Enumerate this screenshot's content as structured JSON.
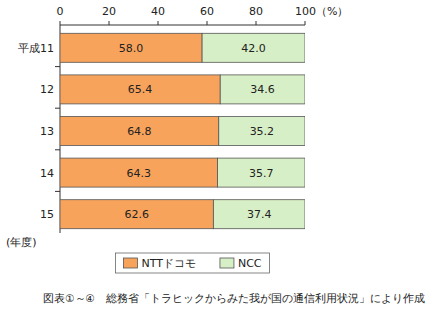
{
  "chart_data": {
    "type": "bar",
    "orientation": "horizontal",
    "stacked": true,
    "data_labels": true,
    "categories": [
      "平成11",
      "12",
      "13",
      "14",
      "15"
    ],
    "y_label": "(年度)",
    "series": [
      {
        "name": "NTTドコモ",
        "color": "#f7a35c",
        "values": [
          58.0,
          65.4,
          64.8,
          64.3,
          62.6
        ],
        "value_labels": [
          "58.0",
          "65.4",
          "64.8",
          "64.3",
          "62.6"
        ]
      },
      {
        "name": "NCC",
        "color": "#d7efc6",
        "values": [
          42.0,
          34.6,
          35.2,
          35.7,
          37.4
        ],
        "value_labels": [
          "42.0",
          "34.6",
          "35.2",
          "35.7",
          "37.4"
        ]
      }
    ],
    "xlim": [
      0,
      100
    ],
    "xticks": [
      0,
      20,
      40,
      60,
      80,
      {
        "value": 100,
        "label": "100（%）"
      }
    ],
    "legend": "bottom",
    "grid": false,
    "source": "図表①～④　総務省「トラヒックからみた我が国の通信利用状況」により作成"
  }
}
